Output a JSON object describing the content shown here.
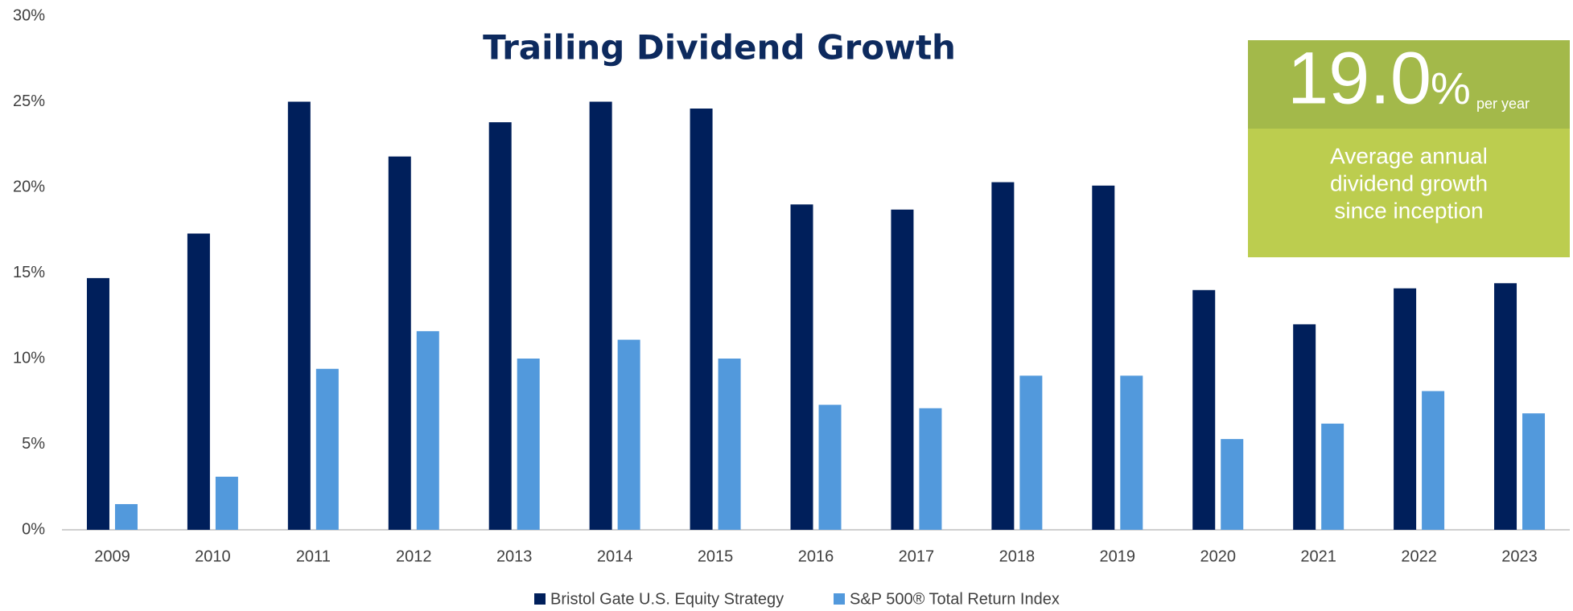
{
  "chart_data": {
    "type": "bar",
    "title": "Trailing Dividend Growth",
    "categories": [
      "2009",
      "2010",
      "2011",
      "2012",
      "2013",
      "2014",
      "2015",
      "2016",
      "2017",
      "2018",
      "2019",
      "2020",
      "2021",
      "2022",
      "2023"
    ],
    "series": [
      {
        "name": "Bristol Gate U.S. Equity Strategy",
        "color": "#001f5b",
        "values": [
          14.7,
          17.3,
          25.0,
          21.8,
          23.8,
          25.0,
          24.6,
          19.0,
          18.7,
          20.3,
          20.1,
          14.0,
          12.0,
          14.1,
          14.4
        ]
      },
      {
        "name": "S&P 500® Total Return Index",
        "color": "#5299dc",
        "values": [
          1.5,
          3.1,
          9.4,
          11.6,
          10.0,
          11.1,
          10.0,
          7.3,
          7.1,
          9.0,
          9.0,
          5.3,
          6.2,
          8.1,
          6.8
        ]
      }
    ],
    "ylim": [
      0,
      30
    ],
    "yticks": [
      {
        "value": 0,
        "label": "0%"
      },
      {
        "value": 5,
        "label": "5%"
      },
      {
        "value": 10,
        "label": "10%"
      },
      {
        "value": 15,
        "label": "15%"
      },
      {
        "value": 20,
        "label": "20%"
      },
      {
        "value": 25,
        "label": "25%"
      },
      {
        "value": 30,
        "label": "30%"
      }
    ],
    "legend": "bottom",
    "annotation": {
      "value": "19.0",
      "unit": "%",
      "suffix": "per year",
      "lines": [
        "Average annual",
        "dividend growth",
        "since inception"
      ]
    }
  }
}
